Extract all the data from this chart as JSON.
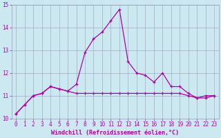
{
  "xlabel": "Windchill (Refroidissement éolien,°C)",
  "hours": [
    0,
    1,
    2,
    3,
    4,
    5,
    6,
    7,
    8,
    9,
    10,
    11,
    12,
    13,
    14,
    15,
    16,
    17,
    18,
    19,
    20,
    21,
    22,
    23
  ],
  "temp": [
    10.2,
    10.6,
    11.0,
    11.1,
    11.4,
    11.3,
    11.2,
    11.1,
    11.1,
    11.1,
    11.1,
    11.1,
    11.1,
    11.1,
    11.1,
    11.1,
    11.1,
    11.1,
    11.1,
    11.1,
    11.0,
    10.9,
    11.0,
    11.0
  ],
  "windchill": [
    10.2,
    10.6,
    11.0,
    11.1,
    11.4,
    11.3,
    11.2,
    11.5,
    12.9,
    13.5,
    13.8,
    14.3,
    14.8,
    12.5,
    12.0,
    11.9,
    11.6,
    12.0,
    11.4,
    11.4,
    11.1,
    10.9,
    10.9,
    11.0
  ],
  "line_color": "#aa00aa",
  "bg_color": "#cce8f0",
  "grid_color": "#9999bb",
  "ylim": [
    10,
    15
  ],
  "xlim_min": -0.5,
  "xlim_max": 23.5,
  "yticks": [
    10,
    11,
    12,
    13,
    14,
    15
  ],
  "xticks": [
    0,
    1,
    2,
    3,
    4,
    5,
    6,
    7,
    8,
    9,
    10,
    11,
    12,
    13,
    14,
    15,
    16,
    17,
    18,
    19,
    20,
    21,
    22,
    23
  ],
  "tick_fontsize": 5.5,
  "xlabel_fontsize": 6.0
}
